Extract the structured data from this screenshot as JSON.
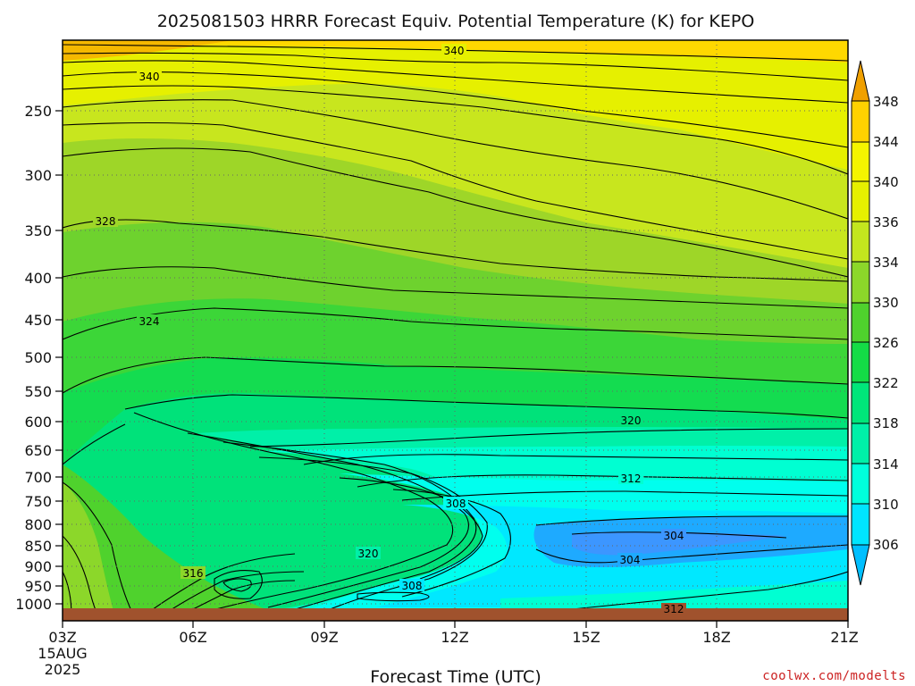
{
  "title": "2025081503 HRRR Forecast Equiv. Potential Temperature (K) for KEPO",
  "xlabel": "Forecast Time (UTC)",
  "credit": "coolwx.com/modelts",
  "x_tick_labels": [
    "03Z",
    "06Z",
    "09Z",
    "12Z",
    "15Z",
    "18Z",
    "21Z"
  ],
  "x_date_labels": [
    "15AUG",
    "2025"
  ],
  "y_tick_labels": [
    "250",
    "300",
    "350",
    "400",
    "450",
    "500",
    "550",
    "600",
    "650",
    "700",
    "750",
    "800",
    "850",
    "900",
    "950",
    "1000"
  ],
  "colorbar_labels": [
    "306",
    "310",
    "314",
    "318",
    "322",
    "326",
    "330",
    "334",
    "336",
    "340",
    "344",
    "348"
  ],
  "colors": {
    "ground": "#a0522d",
    "contour": "#000000",
    "grid": "#777777"
  },
  "chart_data": {
    "type": "heatmap",
    "subtype": "time-pressure filled contour",
    "title": "2025081503 HRRR Forecast Equiv. Potential Temperature (K) for KEPO",
    "xlabel": "Forecast Time (UTC)",
    "ylabel": "",
    "x_range": [
      "03Z",
      "21Z"
    ],
    "x_hours": [
      3,
      6,
      9,
      12,
      15,
      18,
      21
    ],
    "y_axis": "pressure (hPa), log scale, inverted",
    "y_ticks": [
      250,
      300,
      350,
      400,
      450,
      500,
      550,
      600,
      650,
      700,
      750,
      800,
      850,
      900,
      950,
      1000
    ],
    "y_range": [
      1025,
      200
    ],
    "grid": "dotted",
    "colorbar": {
      "placement": "right",
      "levels": [
        306,
        310,
        314,
        318,
        322,
        326,
        330,
        334,
        336,
        340,
        344,
        348
      ],
      "colors": [
        "#00bfff",
        "#00e5ff",
        "#00ffdc",
        "#00f0a8",
        "#00e67a",
        "#14dc46",
        "#4fd22d",
        "#8cd72a",
        "#c3e61e",
        "#f5f500",
        "#ffd200",
        "#f0a000"
      ]
    },
    "fields": [
      {
        "hour": 3,
        "level": 240,
        "value": 340
      },
      {
        "hour": 3,
        "level": 350,
        "value": 328
      },
      {
        "hour": 3,
        "level": 450,
        "value": 324
      },
      {
        "hour": 3,
        "level": 600,
        "value": 322
      },
      {
        "hour": 3,
        "level": 900,
        "value": 330
      },
      {
        "hour": 7,
        "level": 940,
        "value": 316
      },
      {
        "hour": 10,
        "level": 860,
        "value": 320
      },
      {
        "hour": 11,
        "level": 950,
        "value": 308
      },
      {
        "hour": 12,
        "level": 760,
        "value": 308
      },
      {
        "hour": 16,
        "level": 600,
        "value": 320
      },
      {
        "hour": 16,
        "level": 700,
        "value": 312
      },
      {
        "hour": 16,
        "level": 840,
        "value": 304
      },
      {
        "hour": 17,
        "level": 880,
        "value": 304
      },
      {
        "hour": 18,
        "level": 1000,
        "value": 312
      },
      {
        "hour": 12,
        "level": 210,
        "value": 340
      }
    ],
    "contour_labels": [
      {
        "text": "340",
        "hour": 12,
        "level": 210
      },
      {
        "text": "340",
        "hour": 5,
        "level": 225
      },
      {
        "text": "328",
        "hour": 4,
        "level": 345
      },
      {
        "text": "324",
        "hour": 5,
        "level": 450
      },
      {
        "text": "320",
        "hour": 16,
        "level": 600
      },
      {
        "text": "312",
        "hour": 16,
        "level": 700
      },
      {
        "text": "308",
        "hour": 12,
        "level": 760
      },
      {
        "text": "304",
        "hour": 17,
        "level": 840
      },
      {
        "text": "304",
        "hour": 16,
        "level": 880
      },
      {
        "text": "320",
        "hour": 9.8,
        "level": 870
      },
      {
        "text": "316",
        "hour": 6,
        "level": 930
      },
      {
        "text": "308",
        "hour": 11,
        "level": 950
      },
      {
        "text": "312",
        "hour": 17.5,
        "level": 1005
      }
    ]
  }
}
